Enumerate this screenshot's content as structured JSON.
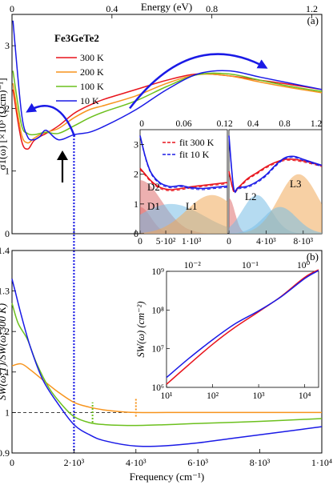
{
  "chart_data": [
    {
      "id": "a",
      "panel_label": "(a)",
      "type": "line",
      "title": "",
      "top_axis": {
        "label": "Energy (eV)",
        "range": [
          0,
          1.24
        ],
        "ticks": [
          0,
          0.4,
          0.8,
          1.2
        ],
        "tick_labels": [
          "0",
          "0.4",
          "0.8",
          "1.2"
        ]
      },
      "xlabel": "",
      "xlim": [
        0,
        10000
      ],
      "ylabel": "σ1(ω) [×10³ (Ωcm)⁻¹]",
      "ylim": [
        0,
        3.5
      ],
      "yticks": [
        0,
        1,
        2,
        3
      ],
      "legend": {
        "title": "Fe3GeTe2",
        "placement": "top-left",
        "entries": [
          "300 K",
          "200 K",
          "100 K",
          "10 K"
        ]
      },
      "colors": {
        "300 K": "#e8141c",
        "200 K": "#f7941d",
        "100 K": "#6cc01e",
        "10 K": "#1a1ae6"
      },
      "series": [
        {
          "name": "300 K",
          "x": [
            30,
            300,
            500,
            700,
            900,
            1100,
            1500,
            2000,
            2500,
            3000,
            4000,
            5000,
            6000,
            7000,
            8000,
            9000,
            10000
          ],
          "y": [
            2.3,
            1.5,
            1.35,
            1.48,
            1.55,
            1.6,
            1.72,
            1.92,
            2.05,
            2.15,
            2.3,
            2.45,
            2.55,
            2.52,
            2.45,
            2.38,
            2.3
          ]
        },
        {
          "name": "200 K",
          "x": [
            30,
            300,
            500,
            700,
            900,
            1100,
            1500,
            2000,
            2500,
            3000,
            4000,
            5000,
            6000,
            7000,
            8000,
            9000,
            10000
          ],
          "y": [
            2.4,
            1.6,
            1.45,
            1.52,
            1.58,
            1.62,
            1.68,
            1.85,
            1.98,
            2.05,
            2.2,
            2.4,
            2.54,
            2.52,
            2.42,
            2.33,
            2.25
          ]
        },
        {
          "name": "100 K",
          "x": [
            30,
            300,
            500,
            700,
            900,
            1100,
            1500,
            2000,
            2500,
            3000,
            4000,
            5000,
            6000,
            7000,
            8000,
            9000,
            10000
          ],
          "y": [
            2.6,
            1.75,
            1.6,
            1.58,
            1.6,
            1.62,
            1.6,
            1.72,
            1.85,
            1.95,
            2.12,
            2.35,
            2.54,
            2.55,
            2.45,
            2.35,
            2.27
          ]
        },
        {
          "name": "10 K",
          "x": [
            30,
            300,
            500,
            700,
            900,
            1100,
            1500,
            2000,
            2500,
            3000,
            4000,
            5000,
            6000,
            7000,
            8000,
            9000,
            10000
          ],
          "y": [
            3.4,
            1.95,
            1.55,
            1.5,
            1.55,
            1.65,
            1.5,
            1.58,
            1.62,
            1.72,
            1.98,
            2.3,
            2.55,
            2.6,
            2.5,
            2.4,
            2.3
          ]
        }
      ]
    },
    {
      "id": "a-inset-left",
      "type": "area",
      "xlim": [
        0,
        1700
      ],
      "ylim": [
        0,
        3.5
      ],
      "yticks": [
        0,
        1,
        2,
        3
      ],
      "xticks": [
        0,
        500,
        1000
      ],
      "xtick_labels": [
        "0",
        "5·10²",
        "1·10³"
      ],
      "top_ticks": [
        0,
        0.06,
        0.12
      ],
      "top_tick_labels": [
        "0",
        "0.06",
        "0.12"
      ],
      "legend": {
        "placement": "top-right",
        "entries": [
          "fit 300 K",
          "fit 10 K"
        ]
      },
      "annotations": [
        "D2",
        "D1",
        "L1"
      ],
      "series": [
        {
          "name": "300 K",
          "x": [
            0,
            100,
            200,
            300,
            400,
            500,
            600,
            700,
            800,
            900,
            1000,
            1200,
            1400,
            1700
          ],
          "y": [
            2.2,
            2.0,
            1.8,
            1.65,
            1.55,
            1.5,
            1.48,
            1.5,
            1.52,
            1.55,
            1.58,
            1.62,
            1.66,
            1.72
          ]
        },
        {
          "name": "10 K",
          "x": [
            0,
            100,
            200,
            300,
            400,
            500,
            600,
            700,
            800,
            900,
            1000,
            1200,
            1400,
            1700
          ],
          "y": [
            3.3,
            2.6,
            2.1,
            1.85,
            1.7,
            1.62,
            1.58,
            1.6,
            1.62,
            1.58,
            1.55,
            1.52,
            1.55,
            1.6
          ]
        }
      ]
    },
    {
      "id": "a-inset-right",
      "type": "area",
      "xlim": [
        0,
        10000
      ],
      "ylim": [
        0,
        3.5
      ],
      "xticks": [
        0,
        4000,
        8000
      ],
      "xtick_labels": [
        "0",
        "4·10³",
        "8·10³"
      ],
      "top_ticks": [
        0.4,
        0.8,
        1.2
      ],
      "top_tick_labels": [
        "0.4",
        "0.8",
        "1.2"
      ],
      "annotations": [
        "L2",
        "L3"
      ],
      "series": [
        {
          "name": "300 K",
          "x": [
            0,
            500,
            1000,
            2000,
            3000,
            4000,
            5000,
            6000,
            7000,
            8000,
            9000,
            10000
          ],
          "y": [
            2.1,
            1.45,
            1.55,
            1.85,
            2.05,
            2.25,
            2.4,
            2.5,
            2.5,
            2.45,
            2.38,
            2.3
          ]
        },
        {
          "name": "10 K",
          "x": [
            0,
            500,
            1000,
            2000,
            3000,
            4000,
            5000,
            6000,
            7000,
            8000,
            9000,
            10000
          ],
          "y": [
            3.3,
            1.55,
            1.55,
            1.6,
            1.75,
            1.98,
            2.3,
            2.55,
            2.6,
            2.5,
            2.4,
            2.3
          ]
        }
      ]
    },
    {
      "id": "b",
      "panel_label": "(b)",
      "type": "line",
      "xlabel": "Frequency (cm⁻¹)",
      "xlim": [
        0,
        10000
      ],
      "xticks": [
        0,
        2000,
        4000,
        6000,
        8000,
        10000
      ],
      "xtick_labels": [
        "0",
        "2·10³",
        "4·10³",
        "6·10³",
        "8·10³",
        "1·10⁴"
      ],
      "ylabel": "SW(ω;T)/SW(ω;300 K)",
      "ylim": [
        0.9,
        1.4
      ],
      "yticks": [
        0.9,
        1.0,
        1.1,
        1.2,
        1.3,
        1.4
      ],
      "ytick_labels": [
        "0.9",
        "1",
        "1.1",
        "1.2",
        "1.3",
        "1.4"
      ],
      "series": [
        {
          "name": "200 K",
          "x": [
            0,
            300,
            600,
            1000,
            1500,
            2000,
            2500,
            3000,
            3500,
            4000,
            5000,
            6000,
            8000,
            10000
          ],
          "y": [
            1.115,
            1.12,
            1.105,
            1.08,
            1.05,
            1.025,
            1.013,
            1.006,
            1.002,
            1.0,
            1.0,
            1.0,
            1.0,
            1.0
          ]
        },
        {
          "name": "100 K",
          "x": [
            0,
            200,
            500,
            800,
            1200,
            1600,
            2000,
            2500,
            3000,
            4000,
            5000,
            6000,
            8000,
            10000
          ],
          "y": [
            1.27,
            1.22,
            1.18,
            1.12,
            1.06,
            1.02,
            0.99,
            0.975,
            0.97,
            0.968,
            0.97,
            0.973,
            0.978,
            0.985
          ]
        },
        {
          "name": "10 K",
          "x": [
            0,
            100,
            300,
            600,
            1000,
            1500,
            2000,
            2500,
            3000,
            4000,
            5000,
            6000,
            7000,
            8000,
            9000,
            10000
          ],
          "y": [
            1.33,
            1.3,
            1.24,
            1.16,
            1.08,
            1.02,
            0.97,
            0.945,
            0.93,
            0.917,
            0.918,
            0.925,
            0.935,
            0.945,
            0.955,
            0.965
          ]
        }
      ]
    },
    {
      "id": "b-inset",
      "type": "line",
      "xlabel": "",
      "ylabel": "SW(ω) (cm⁻²)",
      "xscale": "log",
      "yscale": "log",
      "xlim": [
        10,
        20000
      ],
      "ylim": [
        1000000,
        1000000000
      ],
      "xtick_labels": [
        "10¹",
        "10²",
        "10³",
        "10⁴"
      ],
      "ytick_labels": [
        "10⁶",
        "10⁷",
        "10⁸",
        "10⁹"
      ],
      "top_tick_labels": [
        "10⁻²",
        "10⁻¹",
        "10⁰"
      ],
      "series": [
        {
          "name": "300 K",
          "x": [
            10,
            30,
            100,
            300,
            1000,
            3000,
            10000,
            20000
          ],
          "y": [
            1200000,
            3800000,
            13000000,
            35000000,
            90000000,
            220000000,
            700000000,
            1100000000
          ]
        },
        {
          "name": "10 K",
          "x": [
            10,
            30,
            100,
            300,
            1000,
            3000,
            10000,
            20000
          ],
          "y": [
            1800000,
            5500000,
            17000000,
            43000000,
            95000000,
            215000000,
            650000000,
            1050000000
          ]
        }
      ]
    }
  ]
}
